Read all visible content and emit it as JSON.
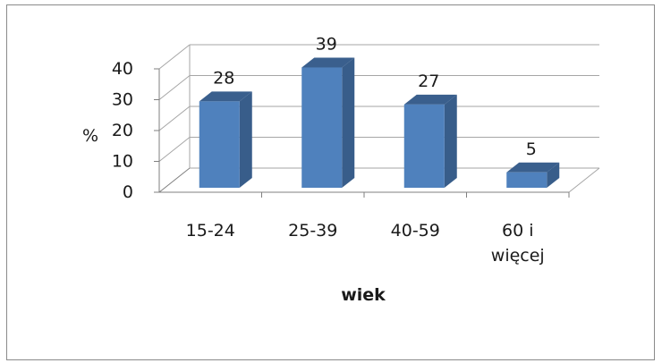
{
  "chart_data": {
    "type": "bar",
    "style": "3d-column",
    "categories": [
      "15-24",
      "25-39",
      "40-59",
      "60 i\nwięcej"
    ],
    "values": [
      28,
      39,
      27,
      5
    ],
    "data_labels": [
      "28",
      "39",
      "27",
      "5"
    ],
    "ylabel": "%",
    "xlabel": "wiek",
    "ylim": [
      0,
      40
    ],
    "yticks": [
      "0",
      "10",
      "20",
      "30",
      "40"
    ],
    "grid": true,
    "legend": false,
    "colors": {
      "bar_front": "#4f81bd",
      "bar_side": "#385d8a",
      "bar_top": "#3a5f8d",
      "grid": "#a6a6a6"
    }
  }
}
